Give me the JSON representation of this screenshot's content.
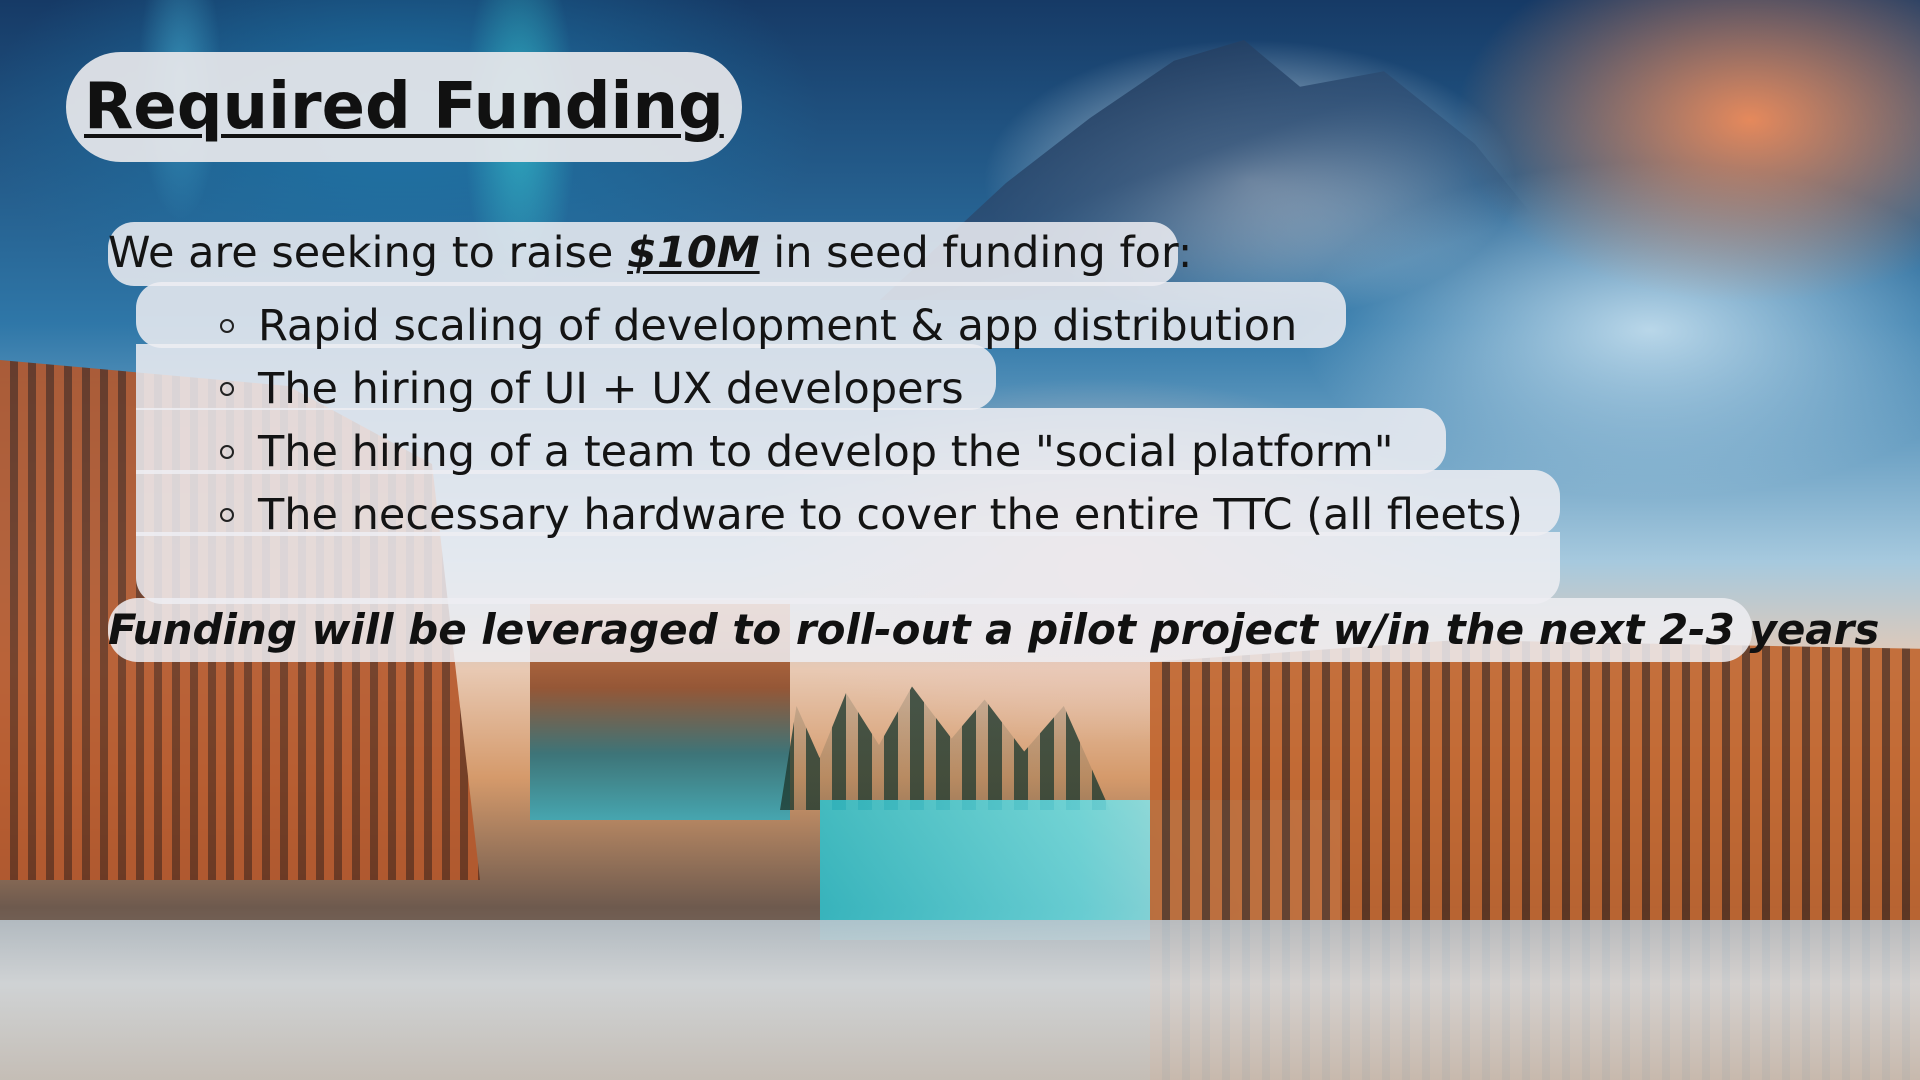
{
  "slide": {
    "title": "Required Funding",
    "intro_prefix": "We are seeking to raise ",
    "amount": "$10M",
    "intro_suffix": " in seed funding for:",
    "bullets": [
      "Rapid scaling of development & app distribution",
      "The hiring of UI + UX developers",
      "The hiring of a team to develop the \"social platform\"",
      "The necessary hardware to cover the entire TTC (all fleets)"
    ],
    "closing": "Funding will be leveraged to roll-out a pilot project w/in the next 2-3 years"
  },
  "colors": {
    "text": "#111111",
    "panel": "#eeeef2"
  },
  "icons": {
    "bullet": "hollow-circle-icon"
  }
}
